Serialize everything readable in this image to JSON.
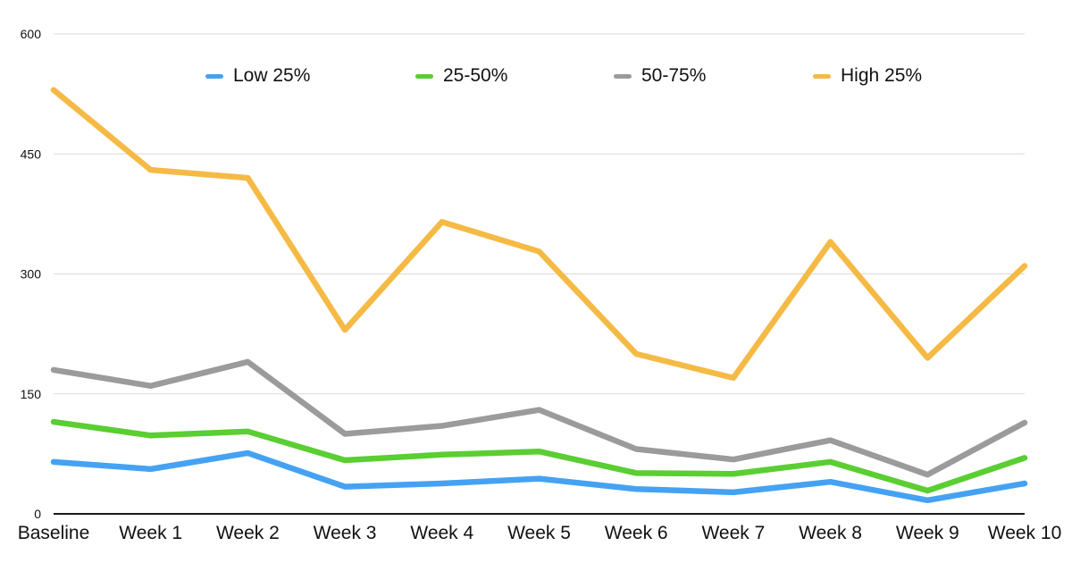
{
  "chart_data": {
    "type": "line",
    "categories": [
      "Baseline",
      "Week 1",
      "Week 2",
      "Week 3",
      "Week 4",
      "Week 5",
      "Week 6",
      "Week 7",
      "Week 8",
      "Week 9",
      "Week 10"
    ],
    "series": [
      {
        "name": "Low 25%",
        "color": "#45A2F3",
        "values": [
          65,
          56,
          76,
          34,
          38,
          44,
          31,
          27,
          40,
          17,
          38
        ]
      },
      {
        "name": "25-50%",
        "color": "#5ACE32",
        "values": [
          115,
          98,
          103,
          67,
          74,
          78,
          51,
          50,
          65,
          29,
          70
        ]
      },
      {
        "name": "50-75%",
        "color": "#9B9B9B",
        "values": [
          180,
          160,
          190,
          100,
          110,
          130,
          81,
          68,
          92,
          49,
          114
        ]
      },
      {
        "name": "High 25%",
        "color": "#F5BA45",
        "values": [
          530,
          430,
          420,
          230,
          365,
          328,
          200,
          170,
          340,
          195,
          310
        ]
      }
    ],
    "ylim": [
      0,
      600
    ],
    "yticks": [
      0,
      150,
      300,
      450,
      600
    ],
    "grid": true,
    "legend_position": "top"
  },
  "colors": {
    "background": "#FFFFFF",
    "gridline": "#DADADA",
    "axis_line": "#1A1A1A",
    "tick_label": "#111111"
  }
}
